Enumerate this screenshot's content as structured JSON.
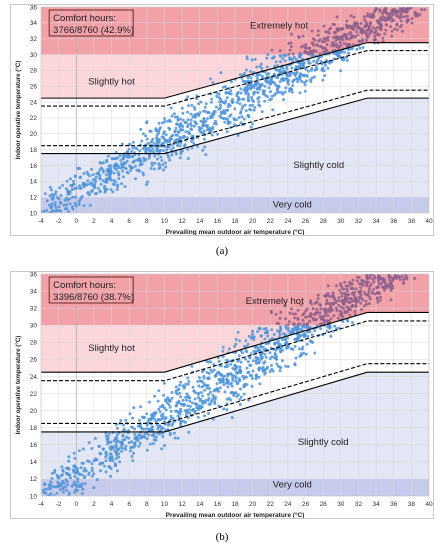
{
  "chart_data": [
    {
      "type": "scatter",
      "caption": "(a)",
      "xlabel": "Prevailing mean outdoor air temperature (°C)",
      "ylabel": "Indoor operative temperature (°C)",
      "xlim": [
        -4,
        40
      ],
      "ylim": [
        10,
        36
      ],
      "xticks": [
        -4,
        -2,
        0,
        2,
        4,
        6,
        8,
        10,
        12,
        14,
        16,
        18,
        20,
        22,
        24,
        26,
        28,
        30,
        32,
        34,
        36,
        38,
        40
      ],
      "yticks": [
        10,
        12,
        14,
        16,
        18,
        20,
        22,
        24,
        26,
        28,
        30,
        32,
        34,
        36
      ],
      "comfort_box": {
        "label": "Comfort hours:",
        "value": "3766/8760 (42.9%)"
      },
      "zones": [
        {
          "label": "Extremely hot",
          "label_x": 23,
          "label_y": 33.3
        },
        {
          "label": "Slightly hot",
          "label_x": 4,
          "label_y": 26.2
        },
        {
          "label": "Slightly cold",
          "label_x": 27.5,
          "label_y": 15.7
        },
        {
          "label": "Very cold",
          "label_x": 24.5,
          "label_y": 10.7
        }
      ],
      "upper_solid": [
        [
          -4,
          24.5
        ],
        [
          10,
          24.5
        ],
        [
          33,
          31.5
        ],
        [
          40,
          31.5
        ]
      ],
      "upper_dashed": [
        [
          -4,
          23.5
        ],
        [
          10,
          23.5
        ],
        [
          33,
          30.5
        ],
        [
          40,
          30.5
        ]
      ],
      "lower_dashed": [
        [
          -4,
          18.5
        ],
        [
          10,
          18.5
        ],
        [
          33,
          25.5
        ],
        [
          40,
          25.5
        ]
      ],
      "lower_solid": [
        [
          -4,
          17.5
        ],
        [
          10,
          17.5
        ],
        [
          33,
          24.5
        ],
        [
          40,
          24.5
        ]
      ],
      "scatter_trend": {
        "x_start": -4,
        "x_end": 40,
        "y_at_start": 10.2,
        "slope": 0.63
      },
      "colors": {
        "extremely_hot": "#f3a1a8",
        "slightly_hot": "#fbd7db",
        "comfort": "#ffffff",
        "slightly_cold": "#e3e6f4",
        "very_cold": "#c7cbeb",
        "points": "#4f94d8",
        "points_hot": "#8c5f8c"
      }
    },
    {
      "type": "scatter",
      "caption": "(b)",
      "xlabel": "Prevailing mean outdoor air temperature (°C)",
      "ylabel": "Indoor operative temperature (°C)",
      "xlim": [
        -4,
        40
      ],
      "ylim": [
        10,
        36
      ],
      "xticks": [
        -4,
        -2,
        0,
        2,
        4,
        6,
        8,
        10,
        12,
        14,
        16,
        18,
        20,
        22,
        24,
        26,
        28,
        30,
        32,
        34,
        36,
        38,
        40
      ],
      "yticks": [
        10,
        12,
        14,
        16,
        18,
        20,
        22,
        24,
        26,
        28,
        30,
        32,
        34,
        36
      ],
      "comfort_box": {
        "label": "Comfort hours:",
        "value": "3396/8760 (38.7%)"
      },
      "zones": [
        {
          "label": "Extremely hot",
          "label_x": 22.5,
          "label_y": 32.5
        },
        {
          "label": "Slightly hot",
          "label_x": 4,
          "label_y": 27.0
        },
        {
          "label": "Slightly cold",
          "label_x": 28,
          "label_y": 16.0
        },
        {
          "label": "Very cold",
          "label_x": 24.5,
          "label_y": 11.0
        }
      ],
      "upper_solid": [
        [
          -4,
          24.5
        ],
        [
          10,
          24.5
        ],
        [
          33,
          31.5
        ],
        [
          40,
          31.5
        ]
      ],
      "upper_dashed": [
        [
          -4,
          23.5
        ],
        [
          10,
          23.5
        ],
        [
          33,
          30.5
        ],
        [
          40,
          30.5
        ]
      ],
      "lower_dashed": [
        [
          -4,
          18.5
        ],
        [
          10,
          18.5
        ],
        [
          33,
          25.5
        ],
        [
          40,
          25.5
        ]
      ],
      "lower_solid": [
        [
          -4,
          17.5
        ],
        [
          10,
          17.5
        ],
        [
          33,
          24.5
        ],
        [
          40,
          24.5
        ]
      ],
      "scatter_trend": {
        "x_start": -4,
        "x_end": 40,
        "y_at_start": 10.0,
        "slope": 0.66
      },
      "colors": {
        "extremely_hot": "#f3a1a8",
        "slightly_hot": "#fbd7db",
        "comfort": "#ffffff",
        "slightly_cold": "#e3e6f4",
        "very_cold": "#c7cbeb",
        "points": "#4f94d8",
        "points_hot": "#8c5f8c"
      }
    }
  ]
}
